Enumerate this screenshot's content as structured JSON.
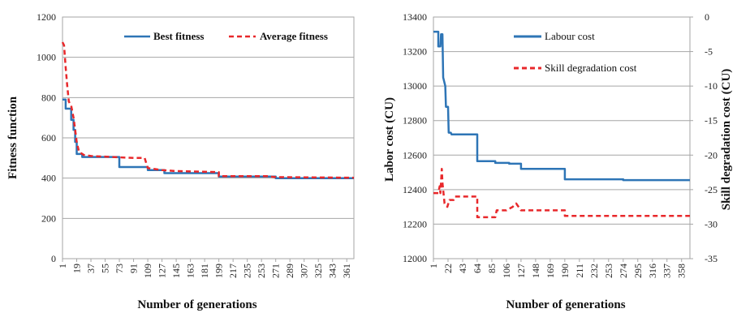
{
  "chart_data": [
    {
      "type": "line",
      "x_tick_labels": [
        "1",
        "19",
        "37",
        "55",
        "73",
        "91",
        "109",
        "127",
        "145",
        "163",
        "181",
        "199",
        "217",
        "235",
        "253",
        "271",
        "289",
        "307",
        "325",
        "343",
        "361"
      ],
      "xlabel": "Number of generations",
      "ylabel": "Fitness function",
      "ylim": [
        0,
        1200
      ],
      "y_ticks": [
        0,
        200,
        400,
        600,
        800,
        1000,
        1200
      ],
      "grid": "horizontal",
      "legend_position": "top",
      "series": [
        {
          "name": "Best fitness",
          "color": "#2e75b6",
          "style": "solid",
          "points": [
            [
              1,
              790
            ],
            [
              5,
              790
            ],
            [
              5,
              745
            ],
            [
              12,
              745
            ],
            [
              12,
              690
            ],
            [
              15,
              690
            ],
            [
              15,
              640
            ],
            [
              17,
              640
            ],
            [
              17,
              580
            ],
            [
              19,
              580
            ],
            [
              19,
              520
            ],
            [
              26,
              520
            ],
            [
              26,
              505
            ],
            [
              73,
              505
            ],
            [
              73,
              455
            ],
            [
              109,
              455
            ],
            [
              109,
              440
            ],
            [
              130,
              440
            ],
            [
              130,
              425
            ],
            [
              199,
              425
            ],
            [
              199,
              408
            ],
            [
              271,
              408
            ],
            [
              271,
              400
            ],
            [
              370,
              400
            ]
          ]
        },
        {
          "name": "Average fitness",
          "color": "#e8282b",
          "style": "dashed",
          "points": [
            [
              1,
              1075
            ],
            [
              3,
              1060
            ],
            [
              5,
              950
            ],
            [
              7,
              860
            ],
            [
              9,
              780
            ],
            [
              12,
              760
            ],
            [
              15,
              700
            ],
            [
              17,
              640
            ],
            [
              19,
              580
            ],
            [
              22,
              530
            ],
            [
              28,
              515
            ],
            [
              37,
              510
            ],
            [
              91,
              500
            ],
            [
              105,
              500
            ],
            [
              109,
              450
            ],
            [
              127,
              440
            ],
            [
              145,
              435
            ],
            [
              199,
              430
            ],
            [
              199,
              410
            ],
            [
              260,
              410
            ],
            [
              270,
              405
            ],
            [
              370,
              402
            ]
          ]
        }
      ]
    },
    {
      "type": "line",
      "x_tick_labels": [
        "1",
        "22",
        "43",
        "64",
        "85",
        "106",
        "127",
        "148",
        "169",
        "190",
        "211",
        "232",
        "253",
        "274",
        "295",
        "316",
        "337",
        "358"
      ],
      "xlabel": "Number of generations",
      "ylabel": "Labor cost (CU)",
      "ylabel_right": "Skill degradation cost (CU)",
      "ylim": [
        12000,
        13400
      ],
      "y_ticks": [
        12000,
        12200,
        12400,
        12600,
        12800,
        13000,
        13200,
        13400
      ],
      "ylim_right": [
        -35,
        0
      ],
      "y_ticks_right": [
        -35,
        -30,
        -25,
        -20,
        -15,
        -10,
        -5,
        0
      ],
      "grid": "horizontal",
      "legend_position": "top",
      "series": [
        {
          "name": "Labour cost",
          "color": "#2e75b6",
          "style": "solid",
          "axis": "left",
          "points": [
            [
              1,
              13315
            ],
            [
              8,
              13315
            ],
            [
              8,
              13230
            ],
            [
              11,
              13230
            ],
            [
              12,
              13300
            ],
            [
              14,
              13300
            ],
            [
              15,
              13050
            ],
            [
              18,
              13000
            ],
            [
              19,
              12880
            ],
            [
              22,
              12880
            ],
            [
              23,
              12730
            ],
            [
              26,
              12730
            ],
            [
              27,
              12720
            ],
            [
              64,
              12720
            ],
            [
              64,
              12565
            ],
            [
              90,
              12565
            ],
            [
              90,
              12555
            ],
            [
              110,
              12555
            ],
            [
              110,
              12550
            ],
            [
              127,
              12550
            ],
            [
              127,
              12520
            ],
            [
              190,
              12520
            ],
            [
              190,
              12460
            ],
            [
              274,
              12460
            ],
            [
              274,
              12455
            ],
            [
              370,
              12455
            ]
          ]
        },
        {
          "name": "Skill degradation cost",
          "color": "#e8282b",
          "style": "dashed",
          "axis": "right",
          "points": [
            [
              1,
              -25.5
            ],
            [
              8,
              -25.5
            ],
            [
              10,
              -24.5
            ],
            [
              11,
              -25.5
            ],
            [
              13,
              -22
            ],
            [
              14,
              -24
            ],
            [
              17,
              -27
            ],
            [
              21,
              -27.5
            ],
            [
              24,
              -26.5
            ],
            [
              30,
              -26.5
            ],
            [
              32,
              -26
            ],
            [
              64,
              -26
            ],
            [
              64,
              -29
            ],
            [
              90,
              -29
            ],
            [
              92,
              -28
            ],
            [
              100,
              -28
            ],
            [
              106,
              -28
            ],
            [
              115,
              -27.5
            ],
            [
              120,
              -27
            ],
            [
              127,
              -28
            ],
            [
              190,
              -28
            ],
            [
              190,
              -28.8
            ],
            [
              370,
              -28.8
            ]
          ]
        }
      ]
    }
  ]
}
